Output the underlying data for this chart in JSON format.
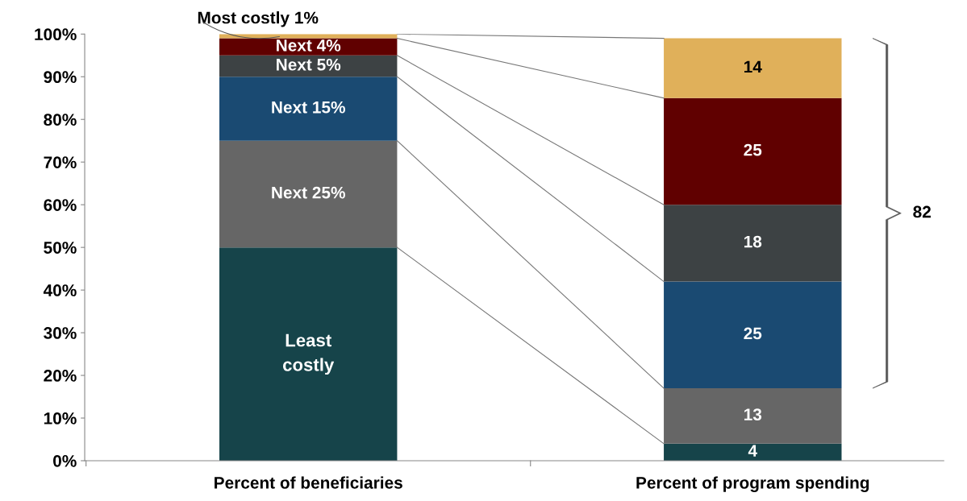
{
  "chart_data": {
    "type": "bar",
    "stacked": true,
    "categories": [
      "Percent of beneficiaries",
      "Percent of program spending"
    ],
    "series": [
      {
        "name": "Least costly",
        "color": "#16444a",
        "values": [
          50,
          4
        ],
        "value_labels": [
          null,
          "4"
        ]
      },
      {
        "name": "Next 25%",
        "color": "#666666",
        "values": [
          25,
          13
        ],
        "value_labels": [
          null,
          "13"
        ]
      },
      {
        "name": "Next 15%",
        "color": "#1a4a72",
        "values": [
          15,
          25
        ],
        "value_labels": [
          null,
          "25"
        ]
      },
      {
        "name": "Next 5%",
        "color": "#3d4244",
        "values": [
          5,
          18
        ],
        "value_labels": [
          null,
          "18"
        ]
      },
      {
        "name": "Next 4%",
        "color": "#600000",
        "values": [
          4,
          25
        ],
        "value_labels": [
          null,
          "25"
        ]
      },
      {
        "name": "Most costly 1%",
        "color": "#e0b05a",
        "values": [
          1,
          14
        ],
        "value_labels": [
          null,
          "14"
        ]
      }
    ],
    "ylim": [
      0,
      100
    ],
    "yticks": [
      {
        "value": 0,
        "label": "0%"
      },
      {
        "value": 10,
        "label": "10%"
      },
      {
        "value": 20,
        "label": "20%"
      },
      {
        "value": 30,
        "label": "30%"
      },
      {
        "value": 40,
        "label": "40%"
      },
      {
        "value": 50,
        "label": "50%"
      },
      {
        "value": 60,
        "label": "60%"
      },
      {
        "value": 70,
        "label": "70%"
      },
      {
        "value": 80,
        "label": "80%"
      },
      {
        "value": 90,
        "label": "90%"
      },
      {
        "value": 100,
        "label": "100%"
      }
    ],
    "annotations": [
      "82"
    ],
    "grid": false,
    "legend": false
  }
}
